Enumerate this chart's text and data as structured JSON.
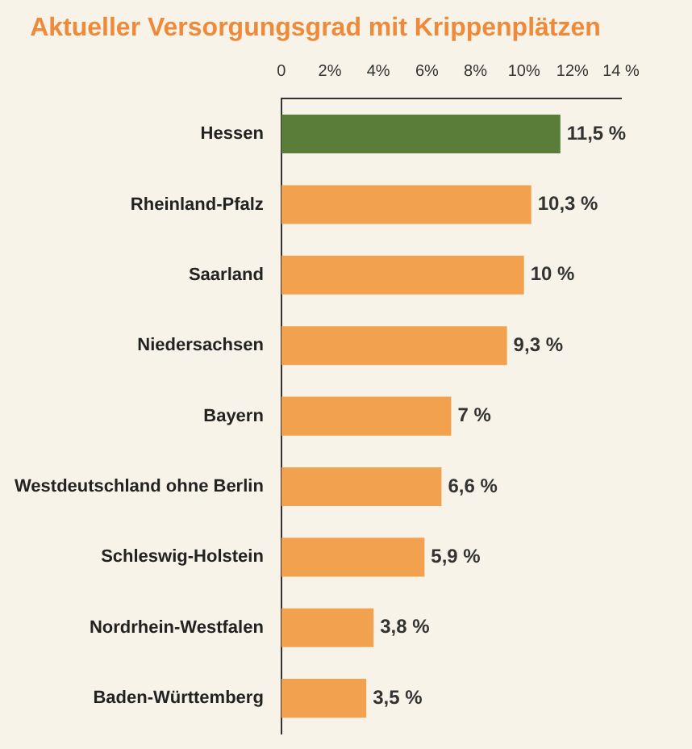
{
  "chart_data": {
    "type": "bar",
    "orientation": "horizontal",
    "title": "Aktueller Versorgungsgrad mit Krippenplätzen",
    "categories": [
      "Hessen",
      "Rheinland-Pfalz",
      "Saarland",
      "Niedersachsen",
      "Bayern",
      "Westdeutschland ohne Berlin",
      "Schleswig-Holstein",
      "Nordrhein-Westfalen",
      "Baden-Württemberg"
    ],
    "values": [
      11.5,
      10.3,
      10,
      9.3,
      7,
      6.6,
      5.9,
      3.8,
      3.5
    ],
    "colors": [
      "#5a7d3a",
      "#f2a24e",
      "#f2a24e",
      "#f2a24e",
      "#f2a24e",
      "#f2a24e",
      "#f2a24e",
      "#f2a24e",
      "#f2a24e"
    ],
    "value_labels": [
      "11,5 %",
      "10,3 %",
      "10 %",
      "9,3 %",
      "7 %",
      "6,6 %",
      "5,9 %",
      "3,8 %",
      "3,5 %"
    ],
    "xlim": [
      0,
      14
    ],
    "xticks": [
      0,
      {
        "value": 2,
        "label": "2%"
      },
      {
        "value": 4,
        "label": "4%"
      },
      {
        "value": 6,
        "label": "6%"
      },
      {
        "value": 8,
        "label": "8%"
      },
      {
        "value": 10,
        "label": "10%"
      },
      {
        "value": 12,
        "label": "12%"
      },
      {
        "value": 14,
        "label": "14 %"
      }
    ],
    "grid": false,
    "legend": false
  }
}
